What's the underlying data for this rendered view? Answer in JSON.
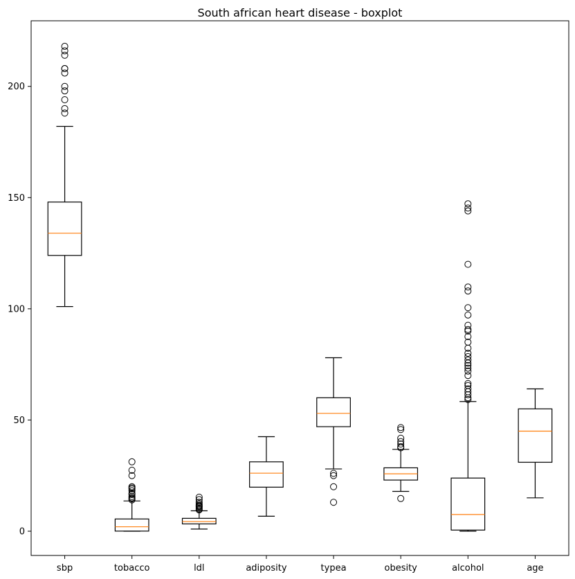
{
  "chart_data": {
    "type": "boxplot",
    "title": "South african heart disease - boxplot",
    "xlabel": "",
    "ylabel": "",
    "ylim": [
      -10.9,
      229.5
    ],
    "yticks": [
      0,
      50,
      100,
      150,
      200
    ],
    "grid": false,
    "categories": [
      "sbp",
      "tobacco",
      "ldl",
      "adiposity",
      "typea",
      "obesity",
      "alcohol",
      "age"
    ],
    "colors": {
      "box": "#000000",
      "median": "#ff7f0e",
      "flier": "#000000"
    },
    "boxes": [
      {
        "name": "sbp",
        "whislo": 101,
        "q1": 124,
        "med": 134,
        "q3": 148,
        "whishi": 182,
        "fliers": [
          188,
          190,
          194,
          198,
          200,
          206,
          208,
          208,
          214,
          216,
          218
        ]
      },
      {
        "name": "tobacco",
        "whislo": 0,
        "q1": 0.05,
        "med": 2.0,
        "q3": 5.5,
        "whishi": 13.6,
        "fliers": [
          14.1,
          14.6,
          15.0,
          15.6,
          16.5,
          17.0,
          18.2,
          19.0,
          19.5,
          20.0,
          25.0,
          27.4,
          31.2
        ]
      },
      {
        "name": "ldl",
        "whislo": 0.98,
        "q1": 3.28,
        "med": 4.34,
        "q3": 5.79,
        "whishi": 9.19,
        "fliers": [
          9.6,
          10.0,
          10.5,
          11.0,
          11.3,
          11.6,
          12.2,
          13.0,
          14.2,
          15.3
        ]
      },
      {
        "name": "adiposity",
        "whislo": 6.74,
        "q1": 19.8,
        "med": 26.1,
        "q3": 31.2,
        "whishi": 42.5,
        "fliers": []
      },
      {
        "name": "typea",
        "whislo": 28,
        "q1": 47,
        "med": 53,
        "q3": 60,
        "whishi": 78,
        "fliers": [
          13,
          20,
          25,
          26
        ]
      },
      {
        "name": "obesity",
        "whislo": 17.9,
        "q1": 23.0,
        "med": 25.8,
        "q3": 28.5,
        "whishi": 36.8,
        "fliers": [
          14.7,
          37.5,
          38.0,
          39.2,
          40.3,
          41.8,
          45.7,
          46.6
        ]
      },
      {
        "name": "alcohol",
        "whislo": 0,
        "q1": 0.51,
        "med": 7.51,
        "q3": 23.9,
        "whishi": 58.3,
        "fliers": [
          59.2,
          60.0,
          61.4,
          62.7,
          64.0,
          65.5,
          66.4,
          70.0,
          72.0,
          73.3,
          74.5,
          75.6,
          77.0,
          78.5,
          80.0,
          82.3,
          85.0,
          87.5,
          90.0,
          90.7,
          92.6,
          97.2,
          100.5,
          108.0,
          109.8,
          120.0,
          144.0,
          145.3,
          147.2
        ]
      },
      {
        "name": "age",
        "whislo": 15,
        "q1": 31,
        "med": 45,
        "q3": 55,
        "whishi": 64,
        "fliers": []
      }
    ]
  }
}
